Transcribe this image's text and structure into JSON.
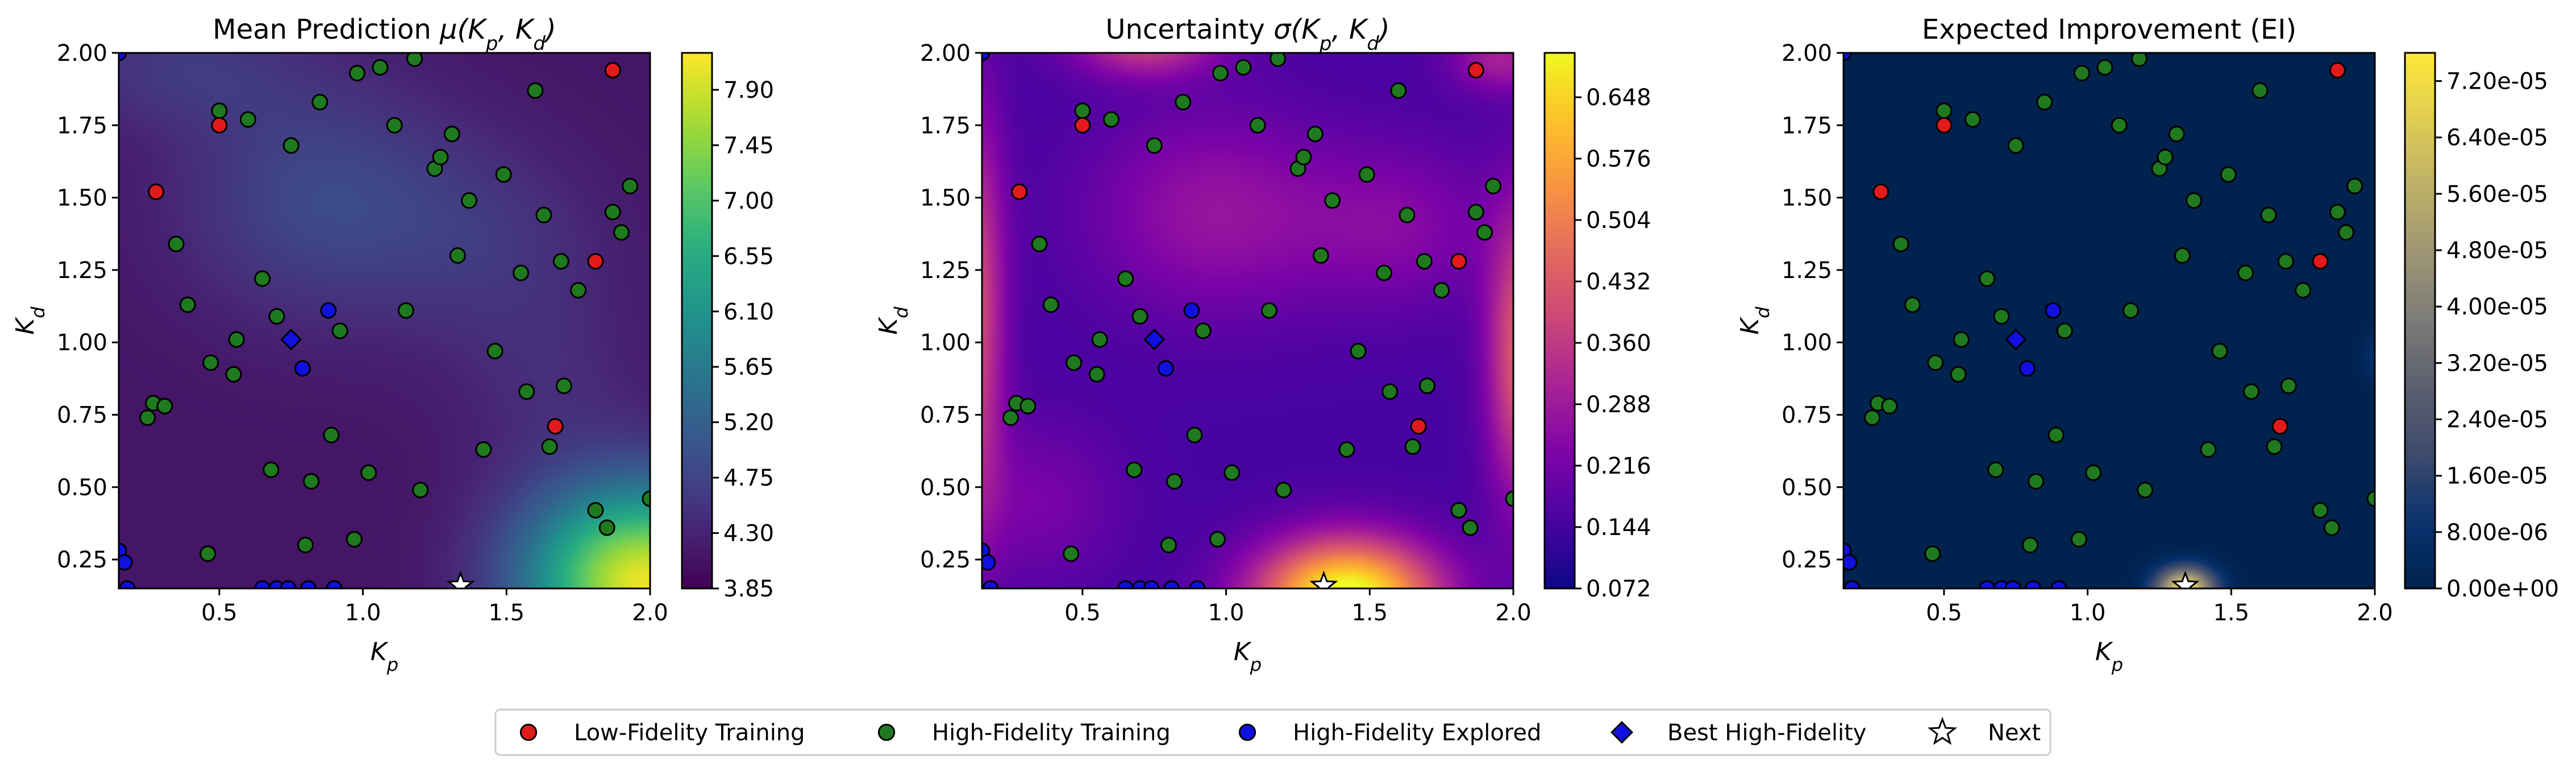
{
  "chart_data": [
    {
      "type": "heatmap",
      "title": "Mean Prediction μ(Kp, Kd)",
      "title_parts": {
        "text": "Mean Prediction ",
        "var": "μ(",
        "x": "K",
        "xs": "p",
        "y": "K",
        "ys": "d"
      },
      "xlabel": {
        "base": "K",
        "sub": "p"
      },
      "ylabel": {
        "base": "K",
        "sub": "d"
      },
      "xlim": [
        0.15,
        2.0
      ],
      "ylim": [
        0.15,
        2.0
      ],
      "xticks": [
        "0.5",
        "1.0",
        "1.5",
        "2.0"
      ],
      "yticks": [
        "0.25",
        "0.50",
        "0.75",
        "1.00",
        "1.25",
        "1.50",
        "1.75",
        "2.00"
      ],
      "colormap": "viridis",
      "colorbar": {
        "min": 3.85,
        "max": 8.2,
        "ticks": [
          "3.85",
          "4.30",
          "4.75",
          "5.20",
          "5.65",
          "6.10",
          "6.55",
          "7.00",
          "7.45",
          "7.90"
        ]
      }
    },
    {
      "type": "heatmap",
      "title": "Uncertainty σ(Kp, Kd)",
      "title_parts": {
        "text": "Uncertainty ",
        "var": "σ(",
        "x": "K",
        "xs": "p",
        "y": "K",
        "ys": "d"
      },
      "xlabel": {
        "base": "K",
        "sub": "p"
      },
      "ylabel": {
        "base": "K",
        "sub": "d"
      },
      "xlim": [
        0.15,
        2.0
      ],
      "ylim": [
        0.15,
        2.0
      ],
      "xticks": [
        "0.5",
        "1.0",
        "1.5",
        "2.0"
      ],
      "yticks": [
        "0.25",
        "0.50",
        "0.75",
        "1.00",
        "1.25",
        "1.50",
        "1.75",
        "2.00"
      ],
      "colormap": "plasma",
      "colorbar": {
        "min": 0.072,
        "max": 0.7,
        "ticks": [
          "0.072",
          "0.144",
          "0.216",
          "0.288",
          "0.360",
          "0.432",
          "0.504",
          "0.576",
          "0.648"
        ]
      }
    },
    {
      "type": "heatmap",
      "title": "Expected Improvement (EI)",
      "title_parts": {
        "text": "Expected Improvement (EI)"
      },
      "xlabel": {
        "base": "K",
        "sub": "p"
      },
      "ylabel": {
        "base": "K",
        "sub": "d"
      },
      "xlim": [
        0.15,
        2.0
      ],
      "ylim": [
        0.15,
        2.0
      ],
      "xticks": [
        "0.5",
        "1.0",
        "1.5",
        "2.0"
      ],
      "yticks": [
        "0.25",
        "0.50",
        "0.75",
        "1.00",
        "1.25",
        "1.50",
        "1.75",
        "2.00"
      ],
      "colormap": "cividis",
      "colorbar": {
        "min": 0.0,
        "max": 7.6e-05,
        "ticks": [
          "0.00e+00",
          "8.00e-06",
          "1.60e-05",
          "2.40e-05",
          "3.20e-05",
          "4.00e-05",
          "4.80e-05",
          "5.60e-05",
          "6.40e-05",
          "7.20e-05"
        ]
      }
    }
  ],
  "points": {
    "low_fidelity": [
      [
        0.28,
        1.52
      ],
      [
        0.5,
        1.75
      ],
      [
        1.67,
        0.71
      ],
      [
        1.81,
        1.28
      ],
      [
        1.87,
        1.94
      ]
    ],
    "high_fidelity": [
      [
        0.25,
        0.74
      ],
      [
        0.27,
        0.79
      ],
      [
        0.31,
        0.78
      ],
      [
        0.35,
        1.34
      ],
      [
        0.39,
        1.13
      ],
      [
        0.46,
        0.27
      ],
      [
        0.47,
        0.93
      ],
      [
        0.5,
        1.8
      ],
      [
        0.55,
        0.89
      ],
      [
        0.56,
        1.01
      ],
      [
        0.6,
        1.77
      ],
      [
        0.65,
        1.22
      ],
      [
        0.68,
        0.56
      ],
      [
        0.7,
        1.09
      ],
      [
        0.75,
        1.68
      ],
      [
        0.8,
        0.3
      ],
      [
        0.82,
        0.52
      ],
      [
        0.85,
        1.83
      ],
      [
        0.89,
        0.68
      ],
      [
        0.92,
        1.04
      ],
      [
        0.97,
        0.32
      ],
      [
        0.98,
        1.93
      ],
      [
        1.02,
        0.55
      ],
      [
        1.06,
        1.95
      ],
      [
        1.11,
        1.75
      ],
      [
        1.15,
        1.11
      ],
      [
        1.18,
        1.98
      ],
      [
        1.2,
        0.49
      ],
      [
        1.25,
        1.6
      ],
      [
        1.27,
        1.64
      ],
      [
        1.31,
        1.72
      ],
      [
        1.33,
        1.3
      ],
      [
        1.37,
        1.49
      ],
      [
        1.42,
        0.63
      ],
      [
        1.46,
        0.97
      ],
      [
        1.49,
        1.58
      ],
      [
        1.55,
        1.24
      ],
      [
        1.57,
        0.83
      ],
      [
        1.6,
        1.87
      ],
      [
        1.63,
        1.44
      ],
      [
        1.65,
        0.64
      ],
      [
        1.69,
        1.28
      ],
      [
        1.7,
        0.85
      ],
      [
        1.75,
        1.18
      ],
      [
        1.81,
        0.42
      ],
      [
        1.85,
        0.36
      ],
      [
        1.87,
        1.45
      ],
      [
        1.9,
        1.38
      ],
      [
        1.93,
        1.54
      ],
      [
        2.0,
        0.46
      ]
    ],
    "high_fidelity_explored": [
      [
        0.15,
        0.28
      ],
      [
        0.17,
        0.24
      ],
      [
        0.18,
        0.15
      ],
      [
        0.65,
        0.15
      ],
      [
        0.7,
        0.15
      ],
      [
        0.74,
        0.15
      ],
      [
        0.81,
        0.15
      ],
      [
        0.9,
        0.15
      ],
      [
        0.88,
        1.11
      ],
      [
        0.79,
        0.91
      ],
      [
        0.15,
        2.0
      ]
    ],
    "best_high_fidelity": [
      [
        0.75,
        1.01
      ]
    ],
    "next": [
      [
        1.34,
        0.16
      ]
    ]
  },
  "legend": {
    "items": [
      {
        "label": "Low-Fidelity Training",
        "marker": "circle",
        "color": "#e31a1c"
      },
      {
        "label": "High-Fidelity Training",
        "marker": "circle",
        "color": "#1f7a1f"
      },
      {
        "label": "High-Fidelity Explored",
        "marker": "circle",
        "color": "#1010e0"
      },
      {
        "label": "Best High-Fidelity",
        "marker": "diamond",
        "color": "#1010e0"
      },
      {
        "label": "Next",
        "marker": "star",
        "color": "#ffffff"
      }
    ]
  }
}
